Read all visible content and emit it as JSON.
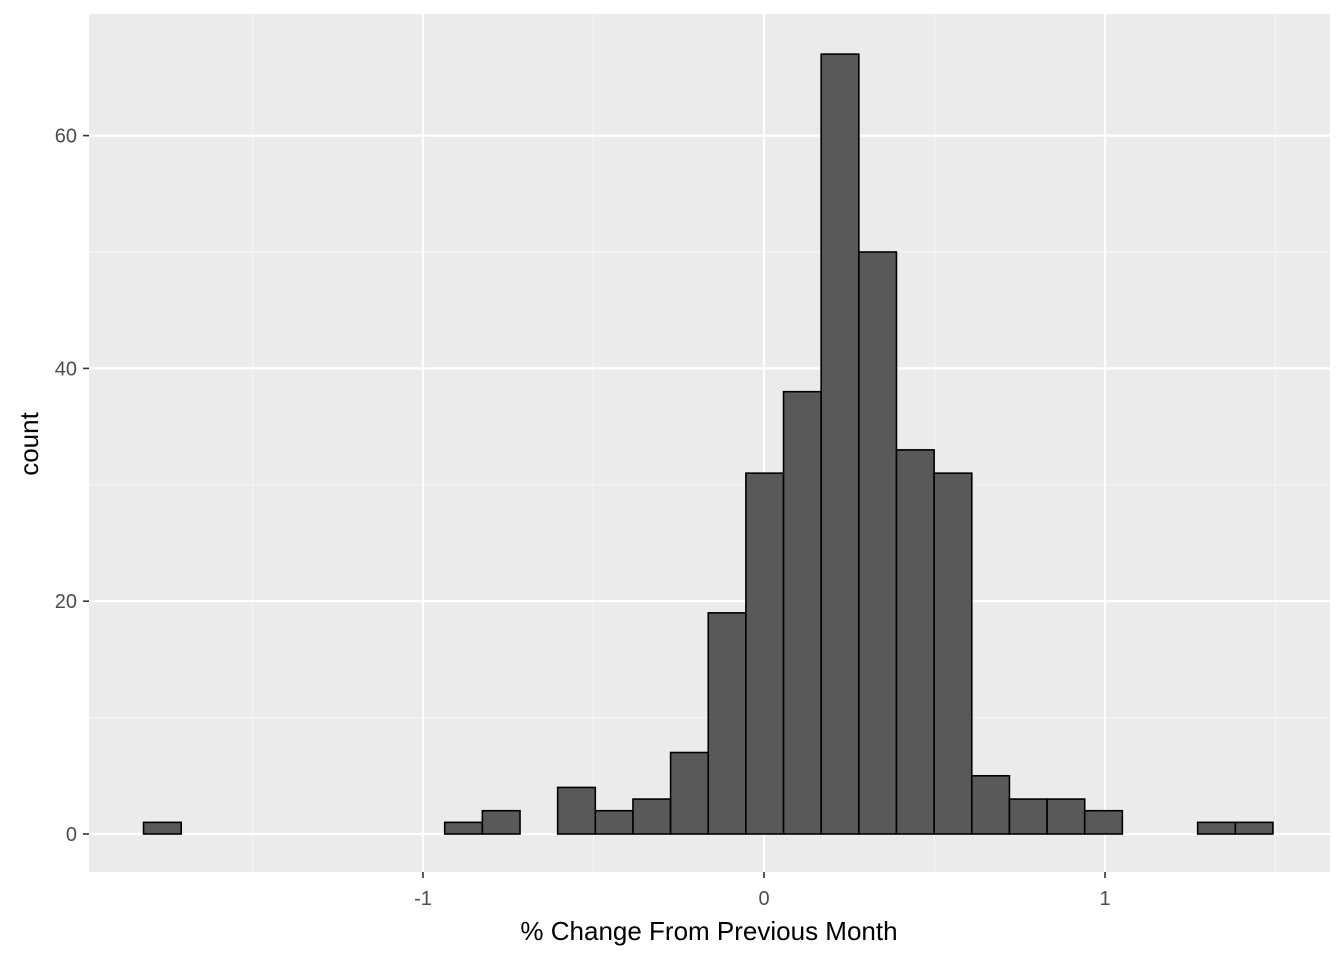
{
  "chart_data": {
    "type": "bar",
    "title": "",
    "xlabel": "% Change From Previous Month",
    "ylabel": "count",
    "xlim": [
      -2.0,
      1.6
    ],
    "ylim": [
      -3,
      69
    ],
    "x_ticks": [
      -1,
      0,
      1
    ],
    "x_tick_labels": [
      "-1",
      "0",
      "1"
    ],
    "y_ticks": [
      0,
      20,
      40,
      60
    ],
    "y_tick_labels": [
      "0",
      "20",
      "40",
      "60"
    ],
    "x_minor_gridlines": [
      -1.5,
      -0.5,
      0.5,
      1.5
    ],
    "y_minor_gridlines": [
      10,
      30,
      50
    ],
    "grid": true,
    "legend": "none",
    "bin_width": 0.1104,
    "bins": [
      {
        "x_min": -1.8195,
        "x_max": -1.7091,
        "count": 1
      },
      {
        "x_min": -1.7091,
        "x_max": -1.5987,
        "count": 0
      },
      {
        "x_min": -1.5987,
        "x_max": -1.4883,
        "count": 0
      },
      {
        "x_min": -1.4883,
        "x_max": -1.3779,
        "count": 0
      },
      {
        "x_min": -1.3779,
        "x_max": -1.2675,
        "count": 0
      },
      {
        "x_min": -1.2675,
        "x_max": -1.1571,
        "count": 0
      },
      {
        "x_min": -1.1571,
        "x_max": -1.0467,
        "count": 0
      },
      {
        "x_min": -1.0467,
        "x_max": -0.9363,
        "count": 0
      },
      {
        "x_min": -0.9363,
        "x_max": -0.8259,
        "count": 1
      },
      {
        "x_min": -0.8259,
        "x_max": -0.7155,
        "count": 2
      },
      {
        "x_min": -0.7155,
        "x_max": -0.6051,
        "count": 0
      },
      {
        "x_min": -0.6051,
        "x_max": -0.4947,
        "count": 4
      },
      {
        "x_min": -0.4947,
        "x_max": -0.3843,
        "count": 2
      },
      {
        "x_min": -0.3843,
        "x_max": -0.2739,
        "count": 3
      },
      {
        "x_min": -0.2739,
        "x_max": -0.1635,
        "count": 7
      },
      {
        "x_min": -0.1635,
        "x_max": -0.0531,
        "count": 19
      },
      {
        "x_min": -0.0531,
        "x_max": 0.0573,
        "count": 31
      },
      {
        "x_min": 0.0573,
        "x_max": 0.1677,
        "count": 38
      },
      {
        "x_min": 0.1677,
        "x_max": 0.2781,
        "count": 67
      },
      {
        "x_min": 0.2781,
        "x_max": 0.3885,
        "count": 50
      },
      {
        "x_min": 0.3885,
        "x_max": 0.4989,
        "count": 33
      },
      {
        "x_min": 0.4989,
        "x_max": 0.6093,
        "count": 31
      },
      {
        "x_min": 0.6093,
        "x_max": 0.7197,
        "count": 5
      },
      {
        "x_min": 0.7197,
        "x_max": 0.8301,
        "count": 3
      },
      {
        "x_min": 0.8301,
        "x_max": 0.9405,
        "count": 3
      },
      {
        "x_min": 0.9405,
        "x_max": 1.0509,
        "count": 2
      },
      {
        "x_min": 1.0509,
        "x_max": 1.1613,
        "count": 0
      },
      {
        "x_min": 1.1613,
        "x_max": 1.2717,
        "count": 0
      },
      {
        "x_min": 1.2717,
        "x_max": 1.3821,
        "count": 1
      },
      {
        "x_min": 1.3821,
        "x_max": 1.4925,
        "count": 1
      }
    ],
    "colors": {
      "panel_background": "#ebebeb",
      "grid_major": "#ffffff",
      "grid_minor": "#f5f5f5",
      "bar_fill": "#595959",
      "bar_outline": "#000000",
      "tick_text": "#4d4d4d",
      "title_text": "#000000"
    }
  }
}
